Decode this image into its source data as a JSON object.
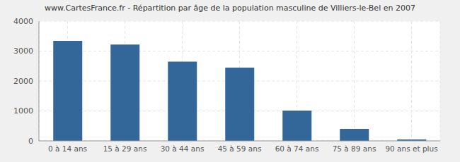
{
  "chart_data": {
    "type": "bar",
    "title": "www.CartesFrance.fr - Répartition par âge de la population masculine de Villiers-le-Bel en 2007",
    "categories": [
      "0 à 14 ans",
      "15 à 29 ans",
      "30 à 44 ans",
      "45 à 59 ans",
      "60 à 74 ans",
      "75 à 89 ans",
      "90 ans et plus"
    ],
    "values": [
      3340,
      3220,
      2650,
      2450,
      1010,
      400,
      50
    ],
    "color": "#336699",
    "ylim": [
      0,
      4000
    ],
    "yticks": [
      0,
      1000,
      2000,
      3000,
      4000
    ],
    "grid": true
  }
}
